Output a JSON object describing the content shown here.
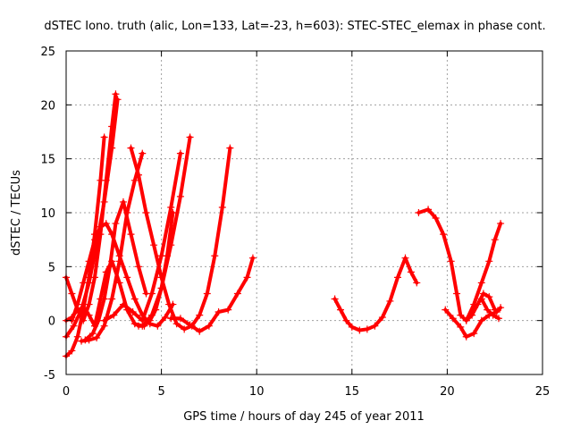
{
  "chart_data": {
    "type": "scatter",
    "title": "dSTEC Iono. truth (alic, Lon=133, Lat=-23, h=603): STEC-STEC_elemax in phase cont.",
    "xlabel": "GPS time / hours of day 245 of year 2011",
    "ylabel": "dSTEC  / TECUs",
    "xlim": [
      0,
      25
    ],
    "ylim": [
      -5,
      25
    ],
    "xticks": [
      "0",
      "5",
      "10",
      "15",
      "20",
      "25"
    ],
    "yticks": [
      "-5",
      "0",
      "5",
      "10",
      "15",
      "20",
      "25"
    ],
    "grid": true,
    "marker": "plus",
    "color": "#ff0000",
    "series": [
      {
        "x": [
          0.0,
          0.3,
          0.6,
          0.9,
          1.2,
          1.5,
          1.8,
          2.1,
          2.4,
          2.6
        ],
        "y": [
          4.0,
          2.5,
          1.0,
          0.0,
          1.5,
          4.0,
          8.0,
          13.0,
          18.0,
          21.0
        ]
      },
      {
        "x": [
          0.0,
          0.4,
          0.8,
          1.2,
          1.6,
          2.0,
          2.4,
          2.7
        ],
        "y": [
          -1.5,
          -0.5,
          1.0,
          3.5,
          7.0,
          11.0,
          16.0,
          20.5
        ]
      },
      {
        "x": [
          0.0,
          0.3,
          0.6,
          0.9,
          1.2,
          1.5,
          1.8,
          2.0
        ],
        "y": [
          -3.3,
          -2.8,
          -1.5,
          1.0,
          4.0,
          8.0,
          13.0,
          17.0
        ]
      },
      {
        "x": [
          0.0,
          0.3,
          0.6,
          0.9,
          1.2,
          1.5
        ],
        "y": [
          0.0,
          0.3,
          1.0,
          1.2,
          0.5,
          -0.5
        ]
      },
      {
        "x": [
          0.3,
          0.6,
          0.9,
          1.2,
          1.5,
          1.8,
          2.1,
          2.4,
          2.8,
          3.2,
          3.6,
          4.0,
          4.4,
          4.8,
          5.2,
          5.6
        ],
        "y": [
          0.0,
          1.5,
          3.5,
          5.5,
          7.5,
          8.7,
          9.0,
          8.0,
          6.0,
          4.0,
          2.0,
          0.5,
          -0.3,
          -0.5,
          0.3,
          1.5
        ]
      },
      {
        "x": [
          0.8,
          1.2,
          1.6,
          2.0,
          2.4,
          2.8,
          3.2,
          3.6,
          4.0
        ],
        "y": [
          -1.9,
          -1.8,
          -1.6,
          -0.5,
          2.0,
          5.5,
          10.0,
          13.0,
          15.5
        ]
      },
      {
        "x": [
          1.0,
          1.4,
          1.7,
          2.0,
          2.3,
          2.6,
          3.0,
          3.4,
          3.8,
          4.2
        ],
        "y": [
          -1.8,
          -1.2,
          0.0,
          2.0,
          5.0,
          9.0,
          11.0,
          8.0,
          5.0,
          2.5
        ]
      },
      {
        "x": [
          1.5,
          1.8,
          2.1,
          2.4,
          2.8,
          3.2,
          3.6,
          4.0,
          4.5,
          5.0,
          5.5,
          6.0,
          6.5
        ],
        "y": [
          -0.5,
          2.0,
          4.5,
          5.5,
          3.5,
          1.0,
          -0.3,
          -0.5,
          0.5,
          3.0,
          7.0,
          11.5,
          17.0
        ]
      },
      {
        "x": [
          2.0,
          2.5,
          3.0,
          3.5,
          4.0,
          4.5,
          5.0,
          5.5,
          6.0
        ],
        "y": [
          0.0,
          0.5,
          1.5,
          0.8,
          0.0,
          2.5,
          6.0,
          10.5,
          15.5
        ]
      },
      {
        "x": [
          3.4,
          3.8,
          4.2,
          4.6,
          5.0,
          5.4,
          5.8,
          6.2,
          6.6,
          7.0,
          7.4,
          7.8,
          8.2,
          8.6
        ],
        "y": [
          16.0,
          13.5,
          10.0,
          7.0,
          4.0,
          1.5,
          -0.3,
          -0.8,
          -0.5,
          0.5,
          2.5,
          6.0,
          10.5,
          16.0
        ]
      },
      {
        "x": [
          3.8,
          4.1,
          4.4,
          4.7,
          5.0,
          5.3,
          5.6
        ],
        "y": [
          -0.5,
          -0.5,
          0.0,
          1.0,
          3.0,
          6.0,
          10.0
        ]
      },
      {
        "x": [
          5.5,
          6.0,
          6.5,
          7.0,
          7.5,
          8.0,
          8.5,
          9.0,
          9.5,
          9.8
        ],
        "y": [
          0.2,
          0.2,
          -0.4,
          -1.0,
          -0.5,
          0.8,
          1.0,
          2.5,
          4.0,
          5.8
        ]
      },
      {
        "x": [
          14.1,
          14.4,
          14.7,
          15.0,
          15.4,
          15.8,
          16.2,
          16.6,
          17.0,
          17.4,
          17.8,
          18.1,
          18.4
        ],
        "y": [
          2.0,
          1.0,
          0.0,
          -0.6,
          -0.9,
          -0.8,
          -0.5,
          0.3,
          1.8,
          4.0,
          5.8,
          4.5,
          3.5
        ]
      },
      {
        "x": [
          18.5,
          19.0,
          19.4,
          19.8,
          20.2,
          20.5,
          20.7,
          21.0,
          21.3,
          21.6,
          21.9,
          22.2,
          22.5
        ],
        "y": [
          10.0,
          10.3,
          9.5,
          8.0,
          5.5,
          2.5,
          0.5,
          0.0,
          0.5,
          1.5,
          2.5,
          2.2,
          1.0
        ]
      },
      {
        "x": [
          19.9,
          20.3,
          20.7,
          21.0,
          21.4,
          21.8,
          22.2,
          22.6,
          22.8
        ],
        "y": [
          1.0,
          0.2,
          -0.6,
          -1.5,
          -1.2,
          0.0,
          0.5,
          0.8,
          1.2
        ]
      },
      {
        "x": [
          21.0,
          21.4,
          21.8,
          22.2,
          22.5,
          22.8
        ],
        "y": [
          0.0,
          1.5,
          3.5,
          5.5,
          7.5,
          9.0
        ]
      },
      {
        "x": [
          21.8,
          22.1,
          22.4,
          22.7
        ],
        "y": [
          2.0,
          1.0,
          0.5,
          0.2
        ]
      }
    ]
  }
}
